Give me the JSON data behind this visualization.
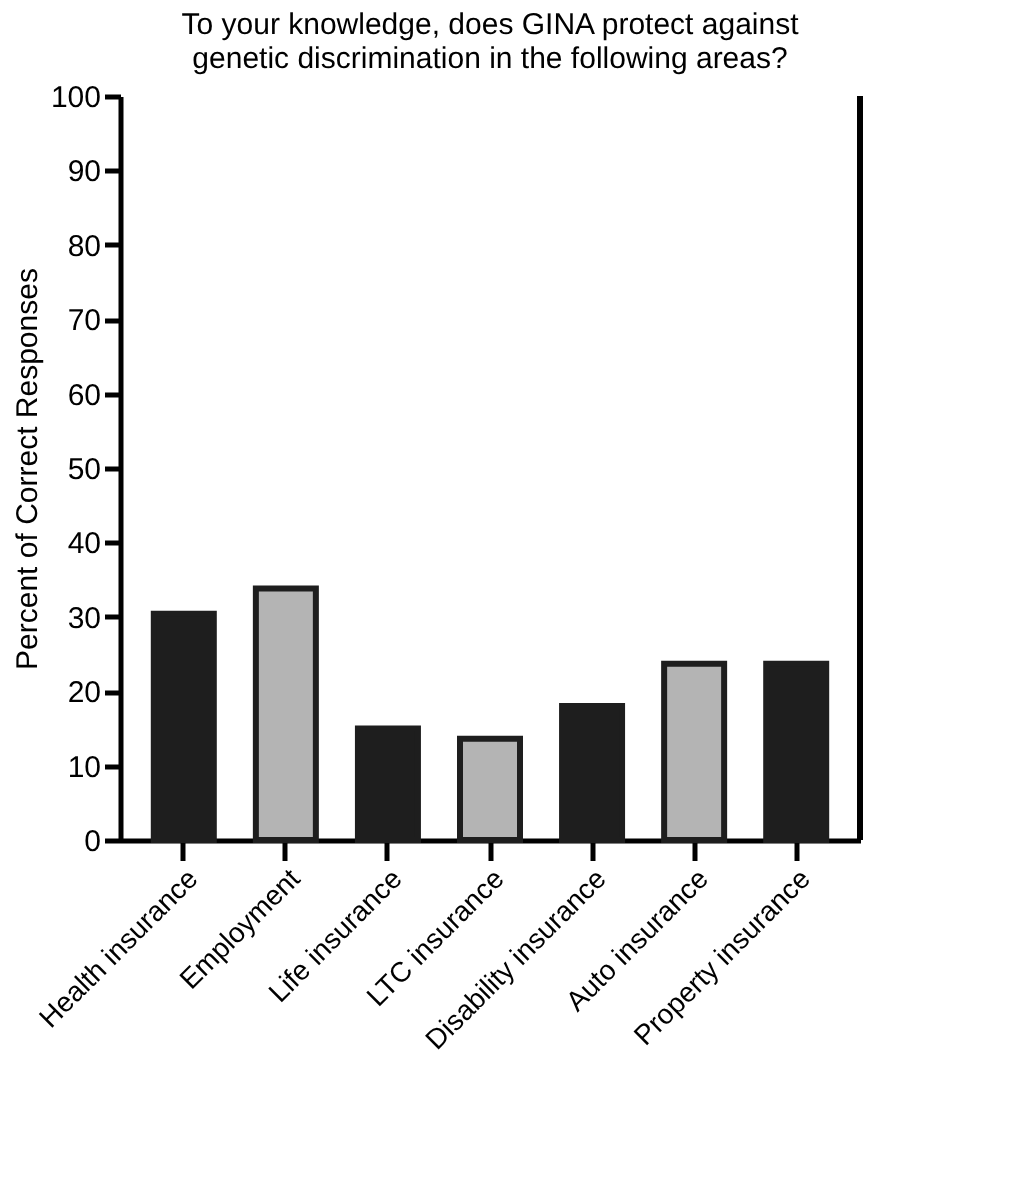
{
  "chart_data": {
    "type": "bar",
    "title": [
      "To your knowledge, does GINA protect against",
      "genetic discrimination in the following areas?"
    ],
    "ylabel": "Percent of Correct Responses",
    "categories": [
      "Health insurance",
      "Employment",
      "Life insurance",
      "LTC insurance",
      "Disability insurance",
      "Auto insurance",
      "Property insurance"
    ],
    "values": [
      30.4,
      33.8,
      15.0,
      13.6,
      18.0,
      23.7,
      23.7
    ],
    "colors": [
      "#1e1e1e",
      "#b4b4b4",
      "#1e1e1e",
      "#b4b4b4",
      "#1e1e1e",
      "#b4b4b4",
      "#1e1e1e"
    ],
    "ylim": [
      0,
      100
    ],
    "yticks": [
      0,
      10,
      20,
      30,
      40,
      50,
      60,
      70,
      80,
      90,
      100
    ],
    "grid": false
  }
}
